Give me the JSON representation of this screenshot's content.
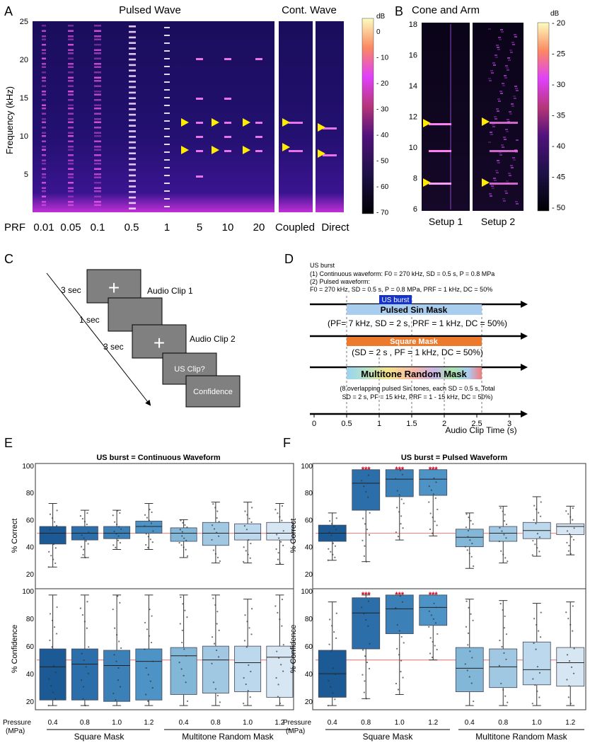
{
  "panels": {
    "a": {
      "letter": "A",
      "title_pulsed": "Pulsed Wave",
      "title_cont": "Cont. Wave",
      "ylabel": "Frequency (kHz)",
      "yticks": [
        "25",
        "20",
        "15",
        "10",
        "5"
      ],
      "prf_label": "PRF",
      "prf_values": [
        "0.01",
        "0.05",
        "0.1",
        "0.5",
        "1",
        "5",
        "10",
        "20"
      ],
      "cont_labels": [
        "Coupled",
        "Direct"
      ],
      "colorbar_title": "dB",
      "colorbar_ticks": [
        "0",
        "- 10",
        "- 20",
        "- 30",
        "- 40",
        "- 50",
        "- 60",
        "- 70"
      ]
    },
    "b": {
      "letter": "B",
      "title": "Cone and Arm",
      "yticks": [
        "18",
        "16",
        "14",
        "12",
        "10",
        "8",
        "6"
      ],
      "setup_labels": [
        "Setup 1",
        "Setup 2"
      ],
      "colorbar_title": "dB",
      "colorbar_ticks": [
        "- 20",
        "- 25",
        "- 30",
        "- 35",
        "- 40",
        "- 45",
        "- 50"
      ]
    },
    "c": {
      "letter": "C",
      "durations": [
        "3 sec",
        "1 sec",
        "3 sec"
      ],
      "clip1": "Audio Clip 1",
      "clip2": "Audio Clip 2",
      "plus": "+",
      "q1": "US Clip?",
      "q2": "Confidence"
    },
    "d": {
      "letter": "D",
      "header": "US burst",
      "line1": "(1) Continuous waveform: F0 = 270 kHz, SD = 0.5 s, P = 0.8 MPa",
      "line2": "(2) Pulsed waveform:",
      "line3": "F0 = 270 kHz, SD = 0.5 s, P = 0.8 MPa, PRF = 1 kHz, DC = 50%",
      "us_burst": "US burst",
      "pulsed_mask": "Pulsed Sin Mask",
      "pulsed_params": "(PF= 7 kHz, SD = 2 s, PRF = 1 kHz, DC = 50%)",
      "square_mask": "Square Mask",
      "square_params": "(SD = 2 s , PF = 1 kHz, DC = 50%)",
      "multitone_mask": "Multitone Random Mask",
      "multitone_params1": "(8 overlapping pulsed Sin tones,  each SD = 0.5 s, Total",
      "multitone_params2": "SD = 2 s, PF = 15 kHz, PRF = 1 - 15 kHz, DC = 50%)",
      "xticks": [
        "0",
        "0.5",
        "1",
        "1.5",
        "2",
        "2.5",
        "3"
      ],
      "xlabel": "Audio Clip Time (s)"
    },
    "e": {
      "letter": "E",
      "title": "US burst = Continuous Waveform",
      "ylabel_top": "% Correct",
      "ylabel_bottom": "% Confidence",
      "yticks": [
        "100",
        "80",
        "60",
        "40",
        "20"
      ]
    },
    "f": {
      "letter": "F",
      "title": "US burst = Pulsed Waveform",
      "ylabel_top": "% Correct",
      "ylabel_bottom": "% Confidence",
      "yticks": [
        "100",
        "80",
        "60",
        "40",
        "20"
      ],
      "significance": "***"
    },
    "footer": {
      "pressure_label": "Pressure",
      "pressure_unit": "(MPa)",
      "pressures": [
        "0.4",
        "0.8",
        "1.0",
        "1.2",
        "0.4",
        "0.8",
        "1.0",
        "1.2"
      ],
      "group1": "Square Mask",
      "group2": "Multitone Random Mask"
    }
  },
  "chart_data": [
    {
      "type": "box",
      "title": "US burst = Continuous Waveform",
      "ylabel": "% Correct",
      "ylim": [
        10,
        100
      ],
      "reference_line": 50,
      "categories": [
        "Square 0.4",
        "Square 0.8",
        "Square 1.0",
        "Square 1.2",
        "Multitone 0.4",
        "Multitone 0.8",
        "Multitone 1.0",
        "Multitone 1.2"
      ],
      "boxes": [
        {
          "whislo": 25,
          "q1": 42,
          "med": 50,
          "q3": 55,
          "whishi": 72
        },
        {
          "whislo": 32,
          "q1": 45,
          "med": 50,
          "q3": 55,
          "whishi": 67
        },
        {
          "whislo": 38,
          "q1": 46,
          "med": 50,
          "q3": 55,
          "whishi": 67
        },
        {
          "whislo": 38,
          "q1": 50,
          "med": 55,
          "q3": 59,
          "whishi": 72
        },
        {
          "whislo": 32,
          "q1": 44,
          "med": 50,
          "q3": 54,
          "whishi": 60
        },
        {
          "whislo": 28,
          "q1": 41,
          "med": 50,
          "q3": 58,
          "whishi": 73
        },
        {
          "whislo": 28,
          "q1": 45,
          "med": 50,
          "q3": 57,
          "whishi": 73
        },
        {
          "whislo": 27,
          "q1": 45,
          "med": 50,
          "q3": 58,
          "whishi": 72
        }
      ]
    },
    {
      "type": "box",
      "title": "US burst = Continuous Waveform",
      "ylabel": "% Confidence",
      "ylim": [
        15,
        100
      ],
      "reference_line": 50,
      "categories": [
        "Square 0.4",
        "Square 0.8",
        "Square 1.0",
        "Square 1.2",
        "Multitone 0.4",
        "Multitone 0.8",
        "Multitone 1.0",
        "Multitone 1.2"
      ],
      "boxes": [
        {
          "whislo": 17,
          "q1": 21,
          "med": 45,
          "q3": 58,
          "whishi": 97
        },
        {
          "whislo": 17,
          "q1": 21,
          "med": 47,
          "q3": 58,
          "whishi": 97
        },
        {
          "whislo": 17,
          "q1": 20,
          "med": 46,
          "q3": 57,
          "whishi": 97
        },
        {
          "whislo": 17,
          "q1": 21,
          "med": 49,
          "q3": 58,
          "whishi": 97
        },
        {
          "whislo": 17,
          "q1": 25,
          "med": 53,
          "q3": 59,
          "whishi": 97
        },
        {
          "whislo": 17,
          "q1": 26,
          "med": 50,
          "q3": 60,
          "whishi": 97
        },
        {
          "whislo": 17,
          "q1": 27,
          "med": 48,
          "q3": 60,
          "whishi": 94
        },
        {
          "whislo": 17,
          "q1": 23,
          "med": 52,
          "q3": 60,
          "whishi": 97
        }
      ]
    },
    {
      "type": "box",
      "title": "US burst = Pulsed Waveform",
      "ylabel": "% Correct",
      "ylim": [
        10,
        100
      ],
      "reference_line": 50,
      "categories": [
        "Square 0.4",
        "Square 0.8",
        "Square 1.0",
        "Square 1.2",
        "Multitone 0.4",
        "Multitone 0.8",
        "Multitone 1.0",
        "Multitone 1.2"
      ],
      "significant": [
        false,
        true,
        true,
        true,
        false,
        false,
        false,
        false
      ],
      "boxes": [
        {
          "whislo": 30,
          "q1": 44,
          "med": 50,
          "q3": 56,
          "whishi": 65
        },
        {
          "whislo": 29,
          "q1": 67,
          "med": 87,
          "q3": 97,
          "whishi": 97
        },
        {
          "whislo": 45,
          "q1": 77,
          "med": 90,
          "q3": 97,
          "whishi": 97
        },
        {
          "whislo": 48,
          "q1": 78,
          "med": 90,
          "q3": 97,
          "whishi": 97
        },
        {
          "whislo": 24,
          "q1": 40,
          "med": 47,
          "q3": 53,
          "whishi": 65
        },
        {
          "whislo": 28,
          "q1": 44,
          "med": 50,
          "q3": 55,
          "whishi": 70
        },
        {
          "whislo": 33,
          "q1": 46,
          "med": 52,
          "q3": 58,
          "whishi": 77
        },
        {
          "whislo": 34,
          "q1": 49,
          "med": 55,
          "q3": 57,
          "whishi": 70
        }
      ]
    },
    {
      "type": "box",
      "title": "US burst = Pulsed Waveform",
      "ylabel": "% Confidence",
      "ylim": [
        15,
        100
      ],
      "reference_line": 50,
      "categories": [
        "Square 0.4",
        "Square 0.8",
        "Square 1.0",
        "Square 1.2",
        "Multitone 0.4",
        "Multitone 0.8",
        "Multitone 1.0",
        "Multitone 1.2"
      ],
      "significant": [
        false,
        true,
        true,
        true,
        false,
        false,
        false,
        false
      ],
      "boxes": [
        {
          "whislo": 17,
          "q1": 23,
          "med": 40,
          "q3": 57,
          "whishi": 92
        },
        {
          "whislo": 22,
          "q1": 58,
          "med": 84,
          "q3": 95,
          "whishi": 97
        },
        {
          "whislo": 25,
          "q1": 69,
          "med": 87,
          "q3": 97,
          "whishi": 97
        },
        {
          "whislo": 50,
          "q1": 75,
          "med": 88,
          "q3": 97,
          "whishi": 97
        },
        {
          "whislo": 17,
          "q1": 27,
          "med": 44,
          "q3": 59,
          "whishi": 94
        },
        {
          "whislo": 17,
          "q1": 30,
          "med": 45,
          "q3": 58,
          "whishi": 93
        },
        {
          "whislo": 17,
          "q1": 32,
          "med": 43,
          "q3": 63,
          "whishi": 91
        },
        {
          "whislo": 17,
          "q1": 31,
          "med": 48,
          "q3": 59,
          "whishi": 92
        }
      ]
    }
  ]
}
